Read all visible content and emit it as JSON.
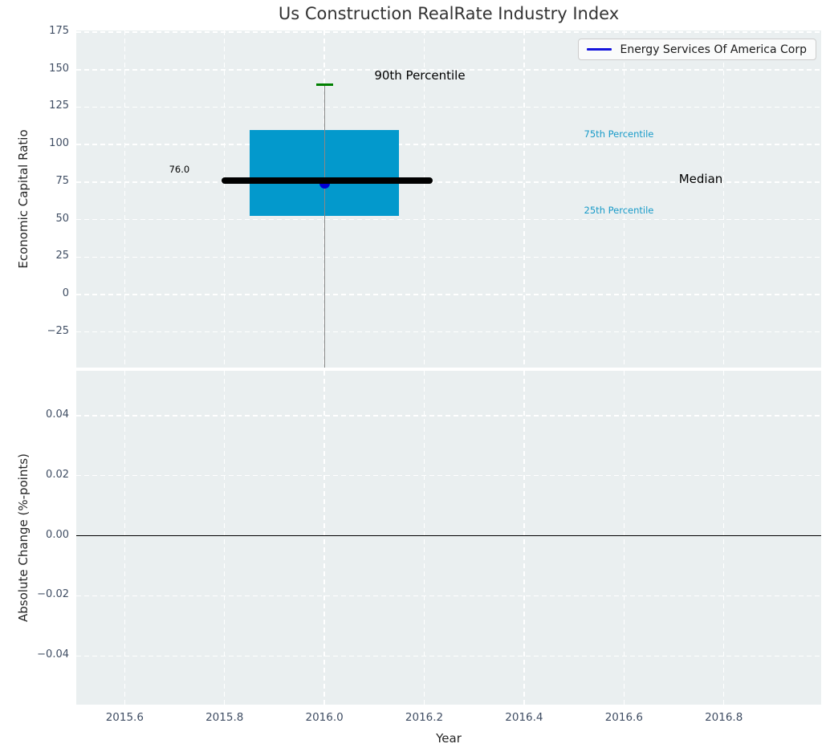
{
  "figure": {
    "background": "#ffffff",
    "plot_background": "#eaeff0",
    "grid_color": "#ffffff",
    "tick_color": "#3f4d63",
    "text_color": "#262626",
    "title": "Us Construction RealRate Industry Index"
  },
  "legend": {
    "label": "Energy Services Of America Corp",
    "line_color": "#1414dc"
  },
  "chart_data": [
    {
      "type": "boxplot",
      "title": "Us Construction RealRate Industry Index",
      "ylabel": "Economic Capital Ratio",
      "ylim": [
        -48.7,
        176.1
      ],
      "yticks": [
        175,
        150,
        125,
        100,
        75,
        50,
        25,
        0,
        -25
      ],
      "ytick_labels": [
        "175",
        "150",
        "125",
        "100",
        "75",
        "50",
        "25",
        "0",
        "−25"
      ],
      "xlim": [
        2015.503,
        2016.995
      ],
      "xgrid": [
        2015.6,
        2015.8,
        2016.0,
        2016.2,
        2016.4,
        2016.6,
        2016.8
      ],
      "grid": true,
      "legend_position": "upper right",
      "box": {
        "x": 2016.0,
        "box_left": 2015.85,
        "box_right": 2016.15,
        "q1": 52.5,
        "median": 76.0,
        "q3": 109.5,
        "p90": 140,
        "whisker_low": "clipped below axis",
        "median_x1": 2015.8,
        "median_x2": 2016.21,
        "cap_halfwidth": 0.017,
        "box_color": "#0399cc",
        "median_color": "#000000",
        "cap_color": "#008000",
        "whisker_color": "#888888"
      },
      "series": [
        {
          "name": "Energy Services Of America Corp",
          "x": [
            2016.0
          ],
          "y": [
            74
          ],
          "color": "#0000d6",
          "marker": "circle"
        }
      ],
      "annotations": [
        {
          "text": "90th Percentile",
          "x": 2016.1,
          "y": 145,
          "color": "#000000",
          "size": 15,
          "align": "left"
        },
        {
          "text": "76.0",
          "x": 2015.73,
          "y": 83,
          "color": "#000000",
          "size": 11.5,
          "align": "right"
        },
        {
          "text": "75th Percentile",
          "x": 2016.52,
          "y": 106.5,
          "color": "#179ac8",
          "size": 11.5,
          "align": "left"
        },
        {
          "text": "Median",
          "x": 2016.71,
          "y": 76,
          "color": "#000000",
          "size": 15,
          "align": "left"
        },
        {
          "text": "25th Percentile",
          "x": 2016.52,
          "y": 55.7,
          "color": "#179ac8",
          "size": 11.5,
          "align": "left"
        }
      ]
    },
    {
      "type": "line",
      "ylabel": "Absolute Change (%-points)",
      "xlabel": "Year",
      "ylim": [
        -0.0562,
        0.0549
      ],
      "yticks": [
        0.04,
        0.02,
        0.0,
        -0.02,
        -0.04
      ],
      "ytick_labels": [
        "0.04",
        "0.02",
        "0.00",
        "−0.02",
        "−0.04"
      ],
      "xlim": [
        2015.503,
        2016.995
      ],
      "xticks": [
        2015.6,
        2015.8,
        2016.0,
        2016.2,
        2016.4,
        2016.6,
        2016.8
      ],
      "xtick_labels": [
        "2015.6",
        "2015.8",
        "2016.0",
        "2016.2",
        "2016.4",
        "2016.6",
        "2016.8"
      ],
      "grid": true,
      "zero_line": {
        "y": 0.0,
        "color": "#000000"
      },
      "series": []
    }
  ]
}
